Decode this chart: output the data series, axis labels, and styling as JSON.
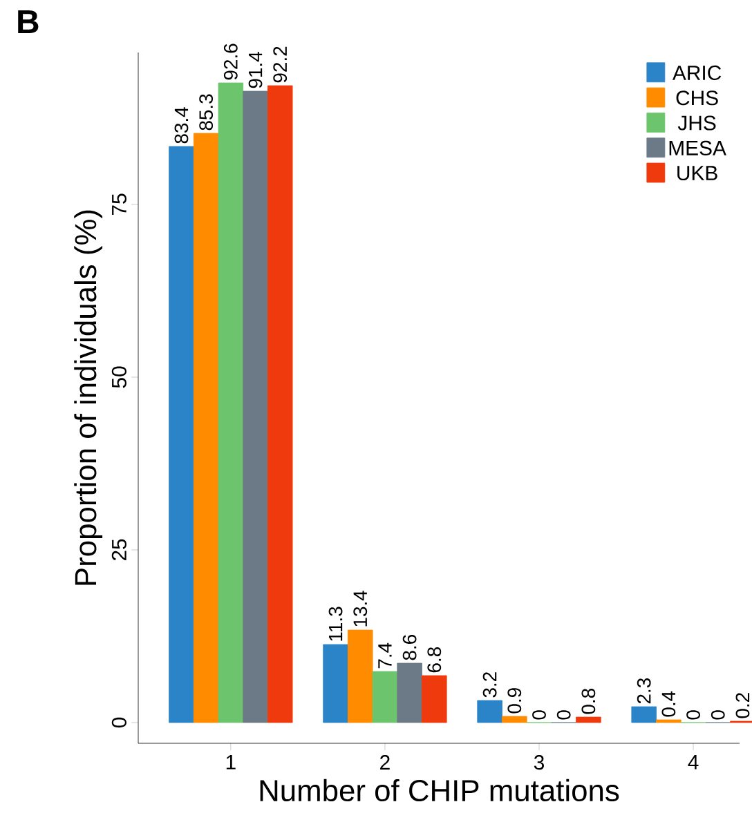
{
  "chart_data": {
    "type": "bar",
    "xlabel": "Number of CHIP mutations",
    "ylabel": "Proportion of individuals (%)",
    "annotations": [
      "B"
    ],
    "categories": [
      "1",
      "2",
      "3",
      "4"
    ],
    "series": [
      {
        "name": "ARIC",
        "color": "#2b83c8",
        "values": [
          83.4,
          11.3,
          3.2,
          2.3
        ]
      },
      {
        "name": "CHS",
        "color": "#ff8c00",
        "values": [
          85.3,
          13.4,
          0.9,
          0.4
        ]
      },
      {
        "name": "JHS",
        "color": "#6cc56c",
        "values": [
          92.6,
          7.4,
          0,
          0
        ]
      },
      {
        "name": "MESA",
        "color": "#6b7a86",
        "values": [
          91.4,
          8.6,
          0,
          0
        ]
      },
      {
        "name": "UKB",
        "color": "#ee3a0c",
        "values": [
          92.2,
          6.8,
          0.8,
          0.2
        ]
      }
    ],
    "ylim": [
      -3,
      97
    ],
    "yticks": [
      0,
      25,
      50,
      75
    ],
    "data_labels": true,
    "legend": "top right",
    "grid": false
  }
}
